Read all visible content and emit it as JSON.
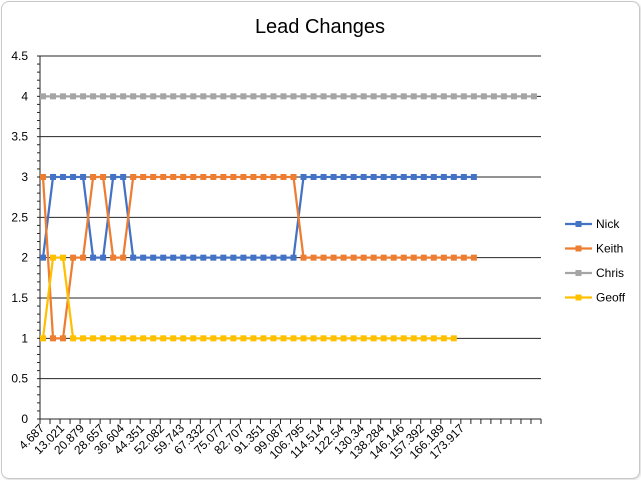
{
  "chart_data": {
    "type": "line",
    "title": "Lead Changes",
    "xlabel": "",
    "ylabel": "",
    "ylim": [
      0,
      4.5
    ],
    "yticks": [
      "0",
      "0.5",
      "1",
      "1.5",
      "2",
      "2.5",
      "3",
      "3.5",
      "4",
      "4.5"
    ],
    "grid": "horizontal",
    "legend_position": "right",
    "x_tick_labels": [
      "4.687",
      "13.021",
      "20.879",
      "28.657",
      "36.604",
      "44.351",
      "52.082",
      "59.743",
      "67.332",
      "75.077",
      "82.707",
      "91.351",
      "99.087",
      "106.795",
      "114.514",
      "122.54",
      "130.34",
      "138.284",
      "146.146",
      "157.392",
      "166.189",
      "173.917"
    ],
    "series": [
      {
        "name": "Nick",
        "color": "#4472C4",
        "values": [
          2,
          3,
          3,
          3,
          3,
          2,
          2,
          3,
          3,
          2,
          2,
          2,
          2,
          2,
          2,
          2,
          2,
          2,
          2,
          2,
          2,
          2,
          2,
          2,
          2,
          2,
          3,
          3,
          3,
          3,
          3,
          3,
          3,
          3,
          3,
          3,
          3,
          3,
          3,
          3,
          3,
          3,
          3,
          3
        ]
      },
      {
        "name": "Keith",
        "color": "#ED7D31",
        "values": [
          3,
          1,
          1,
          2,
          2,
          3,
          3,
          2,
          2,
          3,
          3,
          3,
          3,
          3,
          3,
          3,
          3,
          3,
          3,
          3,
          3,
          3,
          3,
          3,
          3,
          3,
          2,
          2,
          2,
          2,
          2,
          2,
          2,
          2,
          2,
          2,
          2,
          2,
          2,
          2,
          2,
          2,
          2,
          2
        ]
      },
      {
        "name": "Chris",
        "color": "#A5A5A5",
        "values": [
          4,
          4,
          4,
          4,
          4,
          4,
          4,
          4,
          4,
          4,
          4,
          4,
          4,
          4,
          4,
          4,
          4,
          4,
          4,
          4,
          4,
          4,
          4,
          4,
          4,
          4,
          4,
          4,
          4,
          4,
          4,
          4,
          4,
          4,
          4,
          4,
          4,
          4,
          4,
          4,
          4,
          4,
          4,
          4,
          4,
          4,
          4,
          4,
          4,
          4
        ]
      },
      {
        "name": "Geoff",
        "color": "#FFC000",
        "values": [
          1,
          2,
          2,
          1,
          1,
          1,
          1,
          1,
          1,
          1,
          1,
          1,
          1,
          1,
          1,
          1,
          1,
          1,
          1,
          1,
          1,
          1,
          1,
          1,
          1,
          1,
          1,
          1,
          1,
          1,
          1,
          1,
          1,
          1,
          1,
          1,
          1,
          1,
          1,
          1,
          1,
          1
        ]
      }
    ]
  }
}
